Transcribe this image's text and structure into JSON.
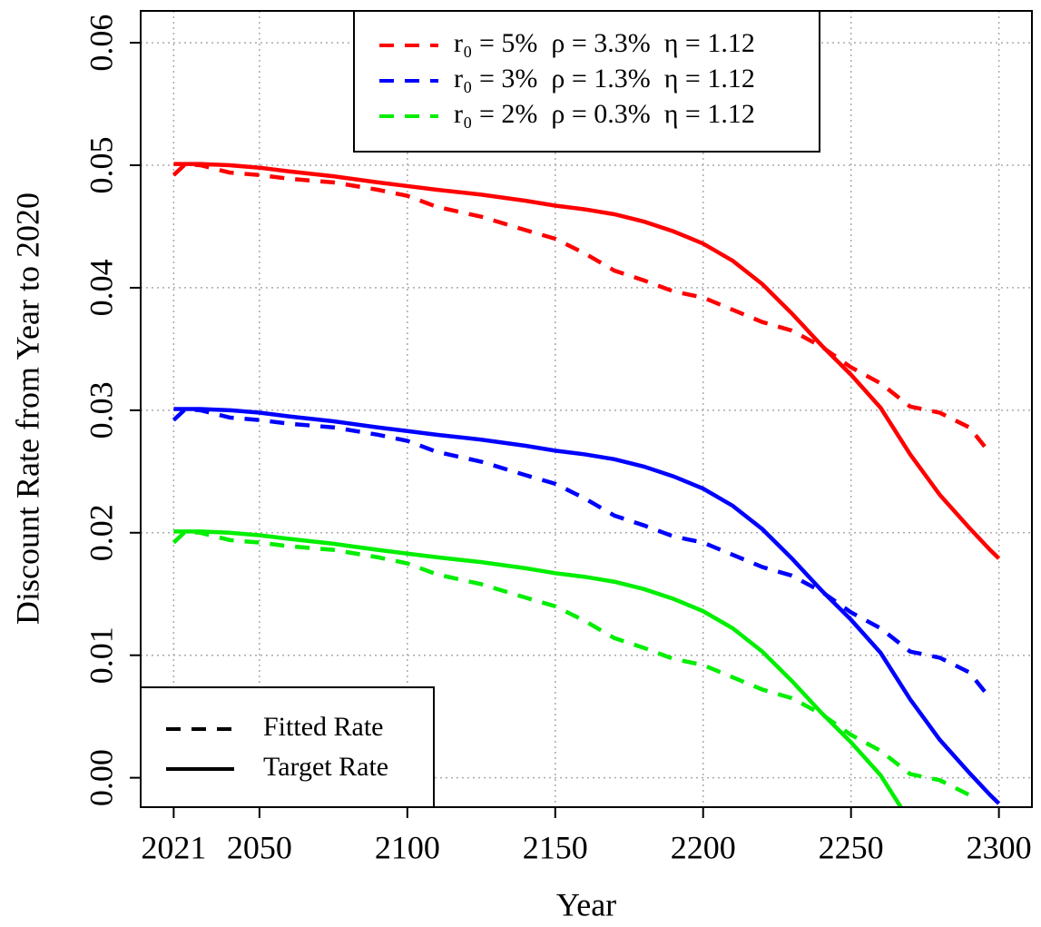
{
  "chart_data": {
    "type": "line",
    "xlabel": "Year",
    "ylabel": "Discount Rate from Year to 2020",
    "x": [
      2021,
      2025,
      2030,
      2040,
      2050,
      2060,
      2075,
      2090,
      2100,
      2110,
      2125,
      2140,
      2150,
      2160,
      2170,
      2180,
      2190,
      2200,
      2210,
      2220,
      2230,
      2240,
      2250,
      2260,
      2270,
      2280,
      2290,
      2297,
      2300
    ],
    "xlim": [
      2009.84,
      2311.16
    ],
    "xticks": [
      2021,
      2050,
      2100,
      2150,
      2200,
      2250,
      2300
    ],
    "ylim": [
      -0.0024,
      0.0626
    ],
    "yticks": [
      {
        "value": 0,
        "label": "0.00"
      },
      0.01,
      0.02,
      0.03,
      0.04,
      0.05,
      0.06
    ],
    "grid": true,
    "line_styles": [
      {
        "name": "Fitted Rate",
        "dash": "dashed"
      },
      {
        "name": "Target Rate",
        "dash": "solid"
      }
    ],
    "series": [
      {
        "name": "r₀ = 5%  ρ = 3.3%  η = 1.12",
        "color": "#ff0000",
        "lines": [
          [
            0.0492,
            0.0501,
            0.05,
            0.0494,
            0.0492,
            0.0489,
            0.0486,
            0.048,
            0.0475,
            0.0466,
            0.0458,
            0.0447,
            0.044,
            0.0428,
            0.0414,
            0.0406,
            0.0397,
            0.0392,
            0.0382,
            0.0372,
            0.0365,
            0.0352,
            0.0335,
            0.0322,
            0.0303,
            0.0298,
            0.0286,
            0.0265,
            null
          ],
          [
            0.0501,
            0.0501,
            0.0501,
            0.05,
            0.0498,
            0.0495,
            0.0491,
            0.0486,
            0.0483,
            0.048,
            0.0476,
            0.0471,
            0.0467,
            0.0464,
            0.046,
            0.0454,
            0.0446,
            0.0436,
            0.0422,
            0.0403,
            0.0379,
            0.0353,
            0.0329,
            0.0302,
            0.0264,
            0.0231,
            0.0204,
            0.0186,
            0.0179
          ]
        ]
      },
      {
        "name": "r₀ = 3%  ρ = 1.3%  η = 1.12",
        "color": "#0000ff",
        "lines": [
          [
            0.0292,
            0.0301,
            0.03,
            0.0294,
            0.0292,
            0.0289,
            0.0286,
            0.028,
            0.0275,
            0.0266,
            0.0258,
            0.0247,
            0.024,
            0.0228,
            0.0214,
            0.0206,
            0.0197,
            0.0192,
            0.0182,
            0.0172,
            0.0165,
            0.0152,
            0.0135,
            0.0122,
            0.0103,
            0.0098,
            0.0086,
            0.0065,
            null
          ],
          [
            0.0301,
            0.0301,
            0.0301,
            0.03,
            0.0298,
            0.0295,
            0.0291,
            0.0286,
            0.0283,
            0.028,
            0.0276,
            0.0271,
            0.0267,
            0.0264,
            0.026,
            0.0254,
            0.0246,
            0.0236,
            0.0222,
            0.0203,
            0.0179,
            0.0153,
            0.0129,
            0.0102,
            0.0064,
            0.0031,
            0.0004,
            -0.0014,
            -0.0021
          ]
        ]
      },
      {
        "name": "r₀ = 2%  ρ = 0.3%  η = 1.12",
        "color": "#00ee00",
        "lines": [
          [
            0.0192,
            0.0201,
            0.02,
            0.0194,
            0.0192,
            0.0189,
            0.0186,
            0.018,
            0.0175,
            0.0166,
            0.0158,
            0.0147,
            0.014,
            0.0128,
            0.0114,
            0.0106,
            0.0097,
            0.0092,
            0.0082,
            0.0072,
            0.0065,
            0.0052,
            0.0035,
            0.0022,
            0.0003,
            -0.0002,
            -0.0014,
            null,
            null
          ],
          [
            0.0201,
            0.0201,
            0.0201,
            0.02,
            0.0198,
            0.0195,
            0.0191,
            0.0186,
            0.0183,
            0.018,
            0.0176,
            0.0171,
            0.0167,
            0.0164,
            0.016,
            0.0154,
            0.0146,
            0.0136,
            0.0122,
            0.0103,
            0.0079,
            0.0053,
            0.0029,
            0.0002,
            -0.0036,
            null,
            null,
            null,
            null
          ]
        ]
      }
    ]
  }
}
